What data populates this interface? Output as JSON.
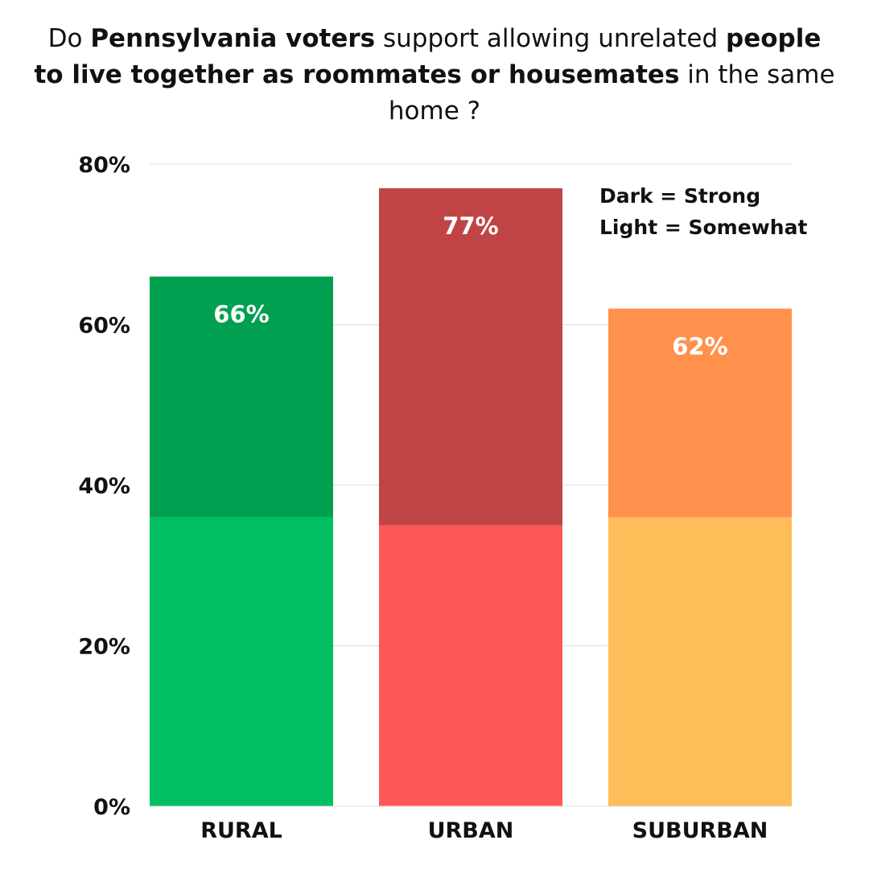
{
  "title": {
    "p1": "Do ",
    "b1": "Pennsylvania voters",
    "p2": " support allowing unrelated ",
    "b2": "people to live together as roommates or housemates",
    "p3": " in the same home ?"
  },
  "legend": {
    "dark": "Dark = Strong",
    "light": "Light = Somewhat"
  },
  "chart_data": {
    "type": "bar",
    "stacked": true,
    "categories": [
      "RURAL",
      "URBAN",
      "SUBURBAN"
    ],
    "series": [
      {
        "values": [
          36,
          35,
          36
        ],
        "colors": [
          "#00bf63",
          "#ff5757",
          "#ffbd59"
        ]
      },
      {
        "values": [
          30,
          42,
          26
        ],
        "colors": [
          "#00a050",
          "#c04444",
          "#ff914d"
        ]
      }
    ],
    "totals": [
      66,
      77,
      62
    ],
    "total_labels": [
      "66%",
      "77%",
      "62%"
    ],
    "ylim": [
      0,
      80
    ],
    "yticks": [
      0,
      20,
      40,
      60,
      80
    ],
    "ytick_labels": [
      "0%",
      "20%",
      "40%",
      "60%",
      "80%"
    ],
    "grid": true,
    "legend_position": "top-right"
  }
}
